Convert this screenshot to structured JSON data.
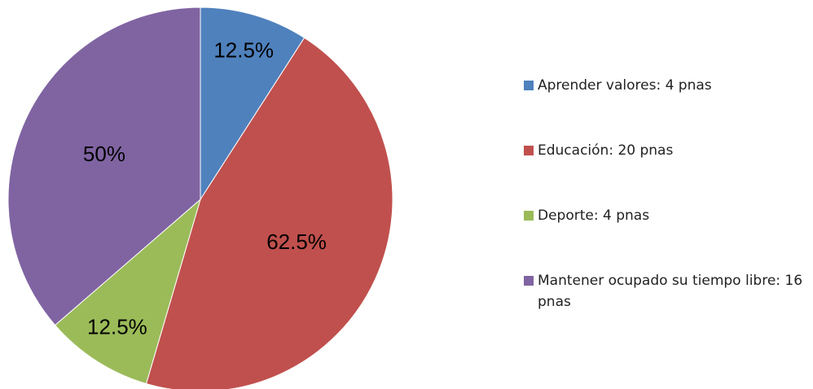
{
  "chart_data": {
    "type": "pie",
    "categories": [
      "Aprender valores: 4 pnas",
      "Educación: 20 pnas",
      "Deporte: 4 pnas",
      "Mantener ocupado su tiempo libre: 16 pnas"
    ],
    "values": [
      12.5,
      62.5,
      12.5,
      50
    ],
    "value_labels": [
      "12.5%",
      "62.5%",
      "12.5%",
      "50%"
    ],
    "colors": [
      "#4f81bd",
      "#c0504d",
      "#9bbb59",
      "#8064a2"
    ],
    "legend": "right"
  }
}
